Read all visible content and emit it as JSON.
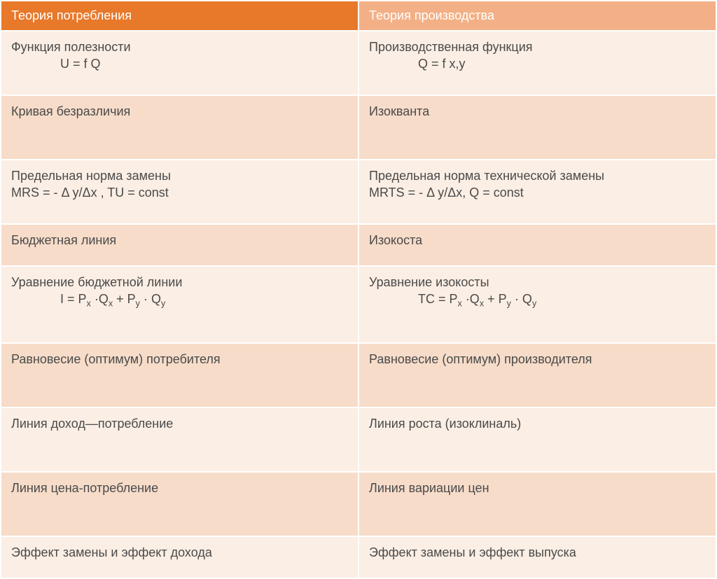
{
  "table": {
    "header_left": "Теория потребления",
    "header_right": "Теория производства",
    "colors": {
      "header_left_bg": "#e8782a",
      "header_right_bg": "#f3b086",
      "header_text": "#ffffff",
      "row_light_bg": "#fbeee4",
      "row_dark_bg": "#f6dcc9",
      "cell_text": "#4a4a4a",
      "border": "#ffffff"
    },
    "font_size_pt": 18,
    "rows": [
      {
        "left_main": "Функция полезности",
        "left_formula": "U = f Q",
        "right_main": "Производственная функция",
        "right_formula": "Q = f x,y"
      },
      {
        "left_main": "Кривая безразличия",
        "right_main": "Изокванта"
      },
      {
        "left_main": "Предельная норма замены",
        "left_line2": "MRS =  -   Δ y/Δx , TU = const",
        "right_main": "Предельная норма технической замены",
        "right_line2": "MRTS =  -   Δ y/Δx, Q = const"
      },
      {
        "left_main": "Бюджетная линия",
        "right_main": "Изокоста"
      },
      {
        "left_main": "Уравнение  бюджетной линии",
        "left_formula_html": "I = P<sub>x</sub> ·Q<sub>x</sub> + P<sub>y</sub> · Q<sub>y</sub>",
        "right_main": "Уравнение  изокосты",
        "right_formula_html": "TC = P<sub>x</sub> ·Q<sub>x</sub> + P<sub>y</sub> · Q<sub>y</sub>"
      },
      {
        "left_main": "Равновесие (оптимум) потребителя",
        "right_main": "Равновесие (оптимум) производителя"
      },
      {
        "left_main": "Линия доход—потребление",
        "right_main": "Линия роста (изоклиналь)"
      },
      {
        "left_main": "Линия  цена-потребление",
        "right_main": "Линия вариации цен"
      },
      {
        "left_main": "Эффект замены и эффект дохода",
        "right_main": "Эффект замены и эффект выпуска"
      }
    ]
  }
}
